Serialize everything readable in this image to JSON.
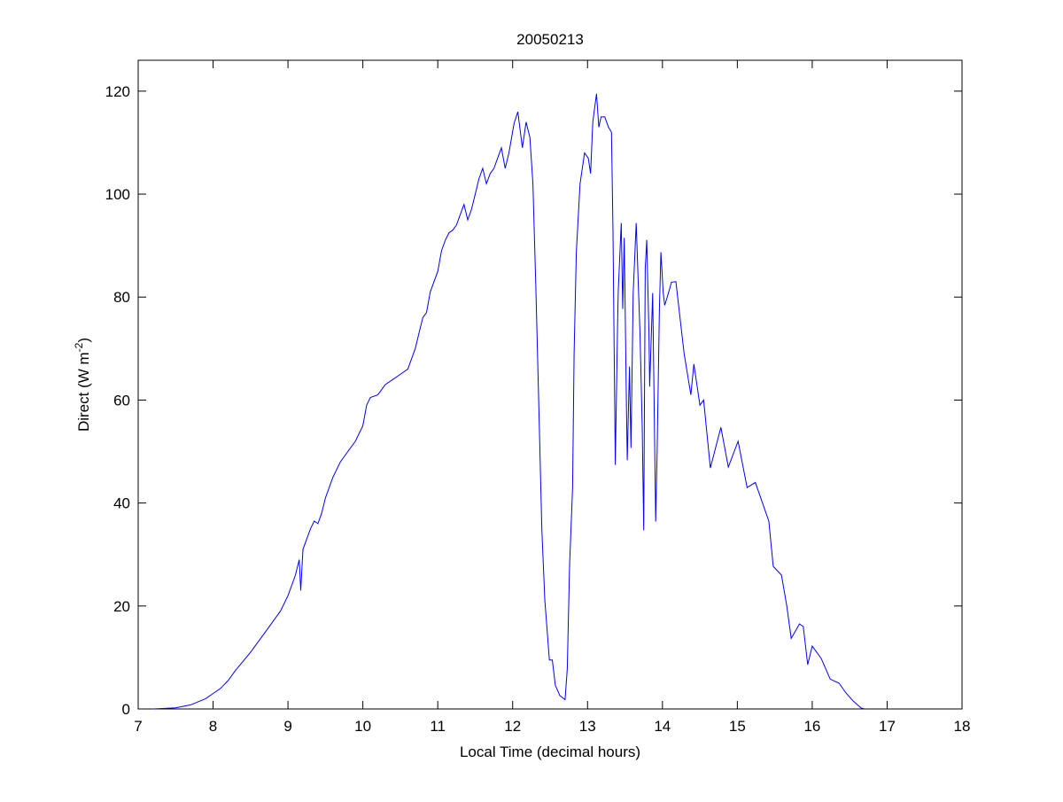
{
  "chart_data": {
    "type": "line",
    "title": "20050213",
    "xlabel": "Local Time (decimal hours)",
    "ylabel": "Direct (W m",
    "ylabel_sup": "-2",
    "ylabel_end": ")",
    "xlim": [
      7,
      18
    ],
    "ylim": [
      0,
      126
    ],
    "xticks": [
      7,
      8,
      9,
      10,
      11,
      12,
      13,
      14,
      15,
      16,
      17,
      18
    ],
    "yticks": [
      0,
      20,
      40,
      60,
      80,
      100,
      120
    ],
    "grid": false,
    "line_color": "#0000ff",
    "series": [
      {
        "name": "Direct",
        "points": [
          [
            7.2,
            0
          ],
          [
            7.5,
            0.2
          ],
          [
            7.7,
            0.8
          ],
          [
            7.9,
            2
          ],
          [
            8.0,
            3
          ],
          [
            8.1,
            4
          ],
          [
            8.2,
            5.5
          ],
          [
            8.3,
            7.5
          ],
          [
            8.5,
            11
          ],
          [
            8.7,
            15
          ],
          [
            8.9,
            19
          ],
          [
            9.0,
            22
          ],
          [
            9.1,
            26
          ],
          [
            9.15,
            29
          ],
          [
            9.17,
            23
          ],
          [
            9.2,
            31
          ],
          [
            9.3,
            35
          ],
          [
            9.35,
            36.5
          ],
          [
            9.4,
            36
          ],
          [
            9.45,
            38
          ],
          [
            9.5,
            41
          ],
          [
            9.6,
            45
          ],
          [
            9.7,
            48
          ],
          [
            9.8,
            50
          ],
          [
            9.9,
            52
          ],
          [
            10.0,
            55
          ],
          [
            10.05,
            59
          ],
          [
            10.1,
            60.5
          ],
          [
            10.2,
            61
          ],
          [
            10.3,
            63
          ],
          [
            10.4,
            64
          ],
          [
            10.5,
            65
          ],
          [
            10.6,
            66
          ],
          [
            10.7,
            70
          ],
          [
            10.75,
            73
          ],
          [
            10.8,
            76
          ],
          [
            10.85,
            77
          ],
          [
            10.9,
            81
          ],
          [
            11.0,
            85
          ],
          [
            11.05,
            89
          ],
          [
            11.1,
            91
          ],
          [
            11.15,
            92.5
          ],
          [
            11.2,
            93
          ],
          [
            11.25,
            94
          ],
          [
            11.3,
            96
          ],
          [
            11.35,
            98
          ],
          [
            11.4,
            95
          ],
          [
            11.45,
            97
          ],
          [
            11.5,
            100
          ],
          [
            11.55,
            103
          ],
          [
            11.6,
            105
          ],
          [
            11.65,
            102
          ],
          [
            11.7,
            104
          ],
          [
            11.75,
            105
          ],
          [
            11.8,
            107
          ],
          [
            11.85,
            109
          ],
          [
            11.9,
            105
          ],
          [
            11.95,
            108
          ],
          [
            12.02,
            113.8
          ],
          [
            12.07,
            116
          ],
          [
            12.13,
            109
          ],
          [
            12.18,
            114
          ],
          [
            12.23,
            111
          ],
          [
            12.27,
            102
          ],
          [
            12.31,
            82
          ],
          [
            12.35,
            58.6
          ],
          [
            12.39,
            34.7
          ],
          [
            12.43,
            21
          ],
          [
            12.49,
            9.5
          ],
          [
            12.53,
            9.5
          ],
          [
            12.57,
            4.6
          ],
          [
            12.63,
            2.6
          ],
          [
            12.7,
            1.8
          ],
          [
            12.73,
            7.8
          ],
          [
            12.76,
            28
          ],
          [
            12.8,
            43
          ],
          [
            12.82,
            69
          ],
          [
            12.85,
            88.7
          ],
          [
            12.9,
            102
          ],
          [
            12.96,
            108
          ],
          [
            13.01,
            107
          ],
          [
            13.04,
            104
          ],
          [
            13.07,
            114
          ],
          [
            13.12,
            119.5
          ],
          [
            13.15,
            113
          ],
          [
            13.18,
            115
          ],
          [
            13.23,
            115
          ],
          [
            13.28,
            113
          ],
          [
            13.32,
            112
          ],
          [
            13.34,
            92.7
          ],
          [
            13.37,
            47.4
          ],
          [
            13.4,
            74
          ],
          [
            13.41,
            81
          ],
          [
            13.45,
            94.4
          ],
          [
            13.47,
            77.7
          ],
          [
            13.49,
            91.5
          ],
          [
            13.52,
            58.6
          ],
          [
            13.53,
            48.3
          ],
          [
            13.56,
            66.5
          ],
          [
            13.58,
            50.7
          ],
          [
            13.61,
            80.8
          ],
          [
            13.65,
            94.4
          ],
          [
            13.7,
            72.9
          ],
          [
            13.73,
            54.7
          ],
          [
            13.75,
            34.7
          ],
          [
            13.77,
            85.6
          ],
          [
            13.79,
            91.1
          ],
          [
            13.82,
            72.9
          ],
          [
            13.83,
            62.6
          ],
          [
            13.87,
            80.8
          ],
          [
            13.91,
            36.4
          ],
          [
            13.93,
            50.7
          ],
          [
            13.96,
            77.7
          ],
          [
            13.98,
            88.7
          ],
          [
            14.01,
            80.8
          ],
          [
            14.03,
            78.4
          ],
          [
            14.08,
            80.8
          ],
          [
            14.12,
            82.9
          ],
          [
            14.18,
            83
          ],
          [
            14.29,
            69
          ],
          [
            14.38,
            61
          ],
          [
            14.42,
            67
          ],
          [
            14.5,
            59
          ],
          [
            14.55,
            60
          ],
          [
            14.64,
            46.8
          ],
          [
            14.78,
            54.7
          ],
          [
            14.88,
            47
          ],
          [
            15.01,
            52
          ],
          [
            15.13,
            43
          ],
          [
            15.24,
            44
          ],
          [
            15.42,
            36.5
          ],
          [
            15.48,
            27.7
          ],
          [
            15.59,
            26
          ],
          [
            15.66,
            20
          ],
          [
            15.72,
            13.7
          ],
          [
            15.83,
            16.5
          ],
          [
            15.88,
            16
          ],
          [
            15.94,
            8.6
          ],
          [
            16.0,
            12.2
          ],
          [
            16.12,
            9.8
          ],
          [
            16.24,
            5.8
          ],
          [
            16.36,
            5
          ],
          [
            16.45,
            3.1
          ],
          [
            16.55,
            1.5
          ],
          [
            16.65,
            0.2
          ],
          [
            16.7,
            0
          ]
        ]
      }
    ]
  }
}
